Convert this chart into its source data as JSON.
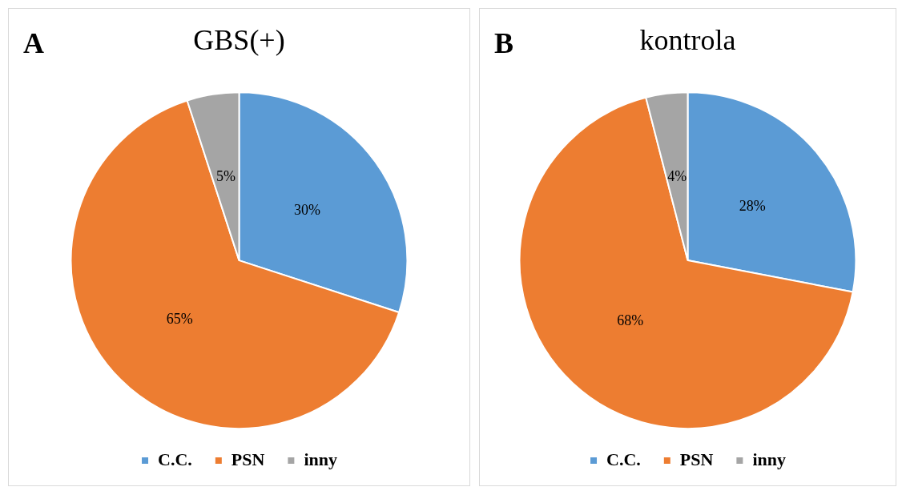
{
  "chart_data": [
    {
      "type": "pie",
      "title": "GBS(+)",
      "annotations": [
        "A"
      ],
      "categories": [
        "C.C.",
        "PSN",
        "inny"
      ],
      "values": [
        30,
        65,
        5
      ],
      "colors": [
        "#5b9bd5",
        "#ed7d31",
        "#a5a5a5"
      ],
      "value_labels": [
        "30%",
        "65%",
        "5%"
      ],
      "legend": "bottom"
    },
    {
      "type": "pie",
      "title": "kontrola",
      "annotations": [
        "B"
      ],
      "categories": [
        "C.C.",
        "PSN",
        "inny"
      ],
      "values": [
        28,
        68,
        4
      ],
      "colors": [
        "#5b9bd5",
        "#ed7d31",
        "#a5a5a5"
      ],
      "value_labels": [
        "28%",
        "68%",
        "4%"
      ],
      "legend": "bottom"
    }
  ]
}
